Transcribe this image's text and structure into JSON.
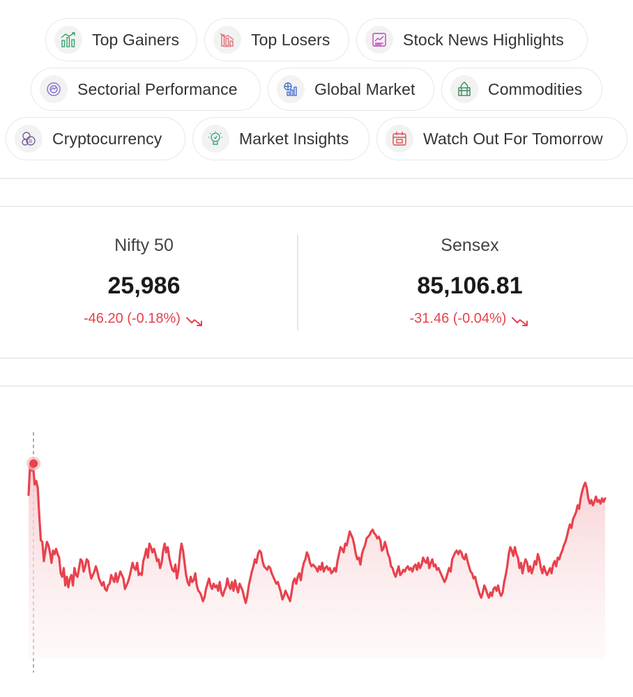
{
  "chips": [
    {
      "label": "Top Gainers",
      "icon": "bar-chart-up-icon",
      "color": "#36a26c"
    },
    {
      "label": "Top Losers",
      "icon": "bar-chart-loss-icon",
      "color": "#e36b73"
    },
    {
      "label": "Stock News Highlights",
      "icon": "news-chart-icon",
      "color": "#c13fbf"
    },
    {
      "label": "Sectorial Performance",
      "icon": "pie-target-icon",
      "color": "#8a6fcf"
    },
    {
      "label": "Global Market",
      "icon": "globe-chart-icon",
      "color": "#4a6fd1"
    },
    {
      "label": "Commodities",
      "icon": "commodity-crate-icon",
      "color": "#3a8a5a"
    },
    {
      "label": "Cryptocurrency",
      "icon": "crypto-coins-icon",
      "color": "#7a5fa0"
    },
    {
      "label": "Market Insights",
      "icon": "bulb-insight-icon",
      "color": "#3aa77a"
    },
    {
      "label": "Watch Out For Tomorrow",
      "icon": "calendar-icon",
      "color": "#e04b4b"
    }
  ],
  "indices": [
    {
      "name": "Nifty 50",
      "value": "25,986",
      "change": "-46.20 (-0.18%)"
    },
    {
      "name": "Sensex",
      "value": "85,106.81",
      "change": "-31.46 (-0.04%)"
    }
  ],
  "colors": {
    "negative": "#e5424d",
    "line": "#e8424e",
    "fill_top": "#f6c9cd"
  },
  "chart_data": {
    "type": "area",
    "title": "",
    "xlabel": "",
    "ylabel": "",
    "grid": false,
    "marker_index": 1,
    "values": [
      72,
      90,
      86,
      88,
      78,
      80,
      76,
      60,
      46,
      45,
      34,
      40,
      45,
      43,
      39,
      33,
      40,
      38,
      41,
      38,
      36,
      27,
      25,
      30,
      20,
      25,
      19,
      24,
      26,
      20,
      30,
      26,
      25,
      30,
      35,
      34,
      28,
      31,
      35,
      34,
      28,
      24,
      26,
      28,
      31,
      28,
      24,
      22,
      20,
      22,
      18,
      17,
      20,
      21,
      26,
      24,
      22,
      27,
      22,
      25,
      28,
      26,
      24,
      18,
      20,
      22,
      25,
      29,
      33,
      30,
      29,
      33,
      26,
      27,
      26,
      34,
      37,
      41,
      36,
      44,
      42,
      39,
      41,
      38,
      34,
      35,
      30,
      33,
      40,
      44,
      39,
      42,
      36,
      32,
      29,
      28,
      32,
      24,
      29,
      38,
      44,
      40,
      33,
      26,
      22,
      20,
      25,
      22,
      23,
      27,
      20,
      17,
      16,
      14,
      11,
      13,
      18,
      21,
      24,
      20,
      18,
      21,
      19,
      20,
      17,
      22,
      16,
      14,
      17,
      19,
      24,
      20,
      18,
      22,
      17,
      23,
      19,
      16,
      21,
      19,
      17,
      13,
      10,
      14,
      20,
      24,
      28,
      31,
      35,
      33,
      38,
      40,
      39,
      34,
      31,
      30,
      29,
      31,
      30,
      27,
      25,
      23,
      21,
      22,
      19,
      16,
      12,
      14,
      17,
      15,
      13,
      11,
      16,
      22,
      24,
      21,
      25,
      27,
      23,
      29,
      33,
      35,
      39,
      37,
      33,
      31,
      32,
      31,
      30,
      28,
      31,
      29,
      33,
      28,
      30,
      31,
      29,
      30,
      27,
      28,
      30,
      28,
      34,
      38,
      42,
      41,
      39,
      44,
      43,
      47,
      51,
      49,
      47,
      43,
      38,
      35,
      36,
      32,
      38,
      41,
      43,
      47,
      48,
      49,
      51,
      52,
      50,
      49,
      47,
      48,
      46,
      40,
      41,
      45,
      42,
      38,
      36,
      31,
      30,
      27,
      25,
      28,
      31,
      26,
      27,
      29,
      28,
      30,
      31,
      29,
      30,
      28,
      31,
      32,
      29,
      33,
      30,
      32,
      36,
      34,
      33,
      36,
      30,
      33,
      35,
      31,
      32,
      29,
      30,
      28,
      26,
      24,
      22,
      24,
      27,
      30,
      28,
      35,
      37,
      39,
      40,
      38,
      40,
      39,
      36,
      35,
      38,
      34,
      31,
      28,
      27,
      24,
      25,
      21,
      18,
      15,
      13,
      16,
      20,
      18,
      15,
      13,
      16,
      14,
      18,
      19,
      17,
      20,
      16,
      14,
      16,
      22,
      26,
      31,
      38,
      42,
      40,
      37,
      42,
      38,
      36,
      30,
      33,
      27,
      32,
      35,
      33,
      28,
      31,
      27,
      30,
      34,
      32,
      38,
      35,
      30,
      27,
      31,
      28,
      26,
      28,
      30,
      27,
      32,
      34,
      31,
      36,
      35,
      38,
      40,
      43,
      45,
      48,
      52,
      55,
      53,
      58,
      60,
      62,
      66,
      64,
      70,
      74,
      77,
      79,
      76,
      70,
      67,
      69,
      66,
      68,
      71,
      68,
      69,
      67,
      70,
      68,
      70
    ]
  }
}
